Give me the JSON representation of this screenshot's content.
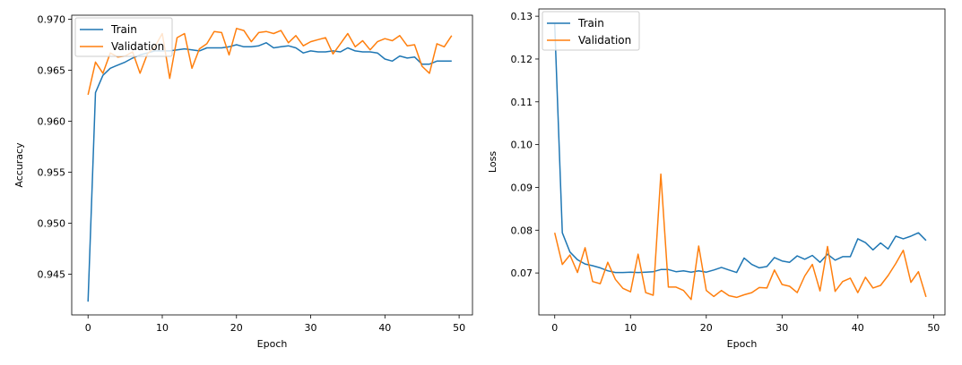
{
  "chart_data": [
    {
      "type": "line",
      "xlabel": "Epoch",
      "ylabel": "Accuracy",
      "xlim": [
        -2.2,
        51.8
      ],
      "ylim": [
        0.941,
        0.9704
      ],
      "xticks": [
        0,
        10,
        20,
        30,
        40,
        50
      ],
      "xtick_labels": [
        "0",
        "10",
        "20",
        "30",
        "40",
        "50"
      ],
      "yticks": [
        0.945,
        0.95,
        0.955,
        0.96,
        0.965,
        0.97
      ],
      "ytick_labels": [
        "0.945",
        "0.950",
        "0.955",
        "0.960",
        "0.965",
        "0.970"
      ],
      "grid": false,
      "legend": "top-left",
      "x": [
        0,
        1,
        2,
        3,
        4,
        5,
        6,
        7,
        8,
        9,
        10,
        11,
        12,
        13,
        14,
        15,
        16,
        17,
        18,
        19,
        20,
        21,
        22,
        23,
        24,
        25,
        26,
        27,
        28,
        29,
        30,
        31,
        32,
        33,
        34,
        35,
        36,
        37,
        38,
        39,
        40,
        41,
        42,
        43,
        44,
        45,
        46,
        47,
        48,
        49
      ],
      "series": [
        {
          "name": "Train",
          "color": "#1f77b4",
          "values": [
            0.9423,
            0.9628,
            0.9645,
            0.9652,
            0.9655,
            0.9658,
            0.9662,
            0.9665,
            0.9667,
            0.9669,
            0.9669,
            0.9669,
            0.967,
            0.9671,
            0.967,
            0.9669,
            0.9672,
            0.9672,
            0.9672,
            0.9673,
            0.9675,
            0.9673,
            0.9673,
            0.9674,
            0.9677,
            0.9672,
            0.9673,
            0.9674,
            0.9672,
            0.9667,
            0.9669,
            0.9668,
            0.9668,
            0.9669,
            0.9668,
            0.9672,
            0.9669,
            0.9668,
            0.9668,
            0.9667,
            0.9661,
            0.9659,
            0.9664,
            0.9662,
            0.9663,
            0.9656,
            0.9656,
            0.9659,
            0.9659,
            0.9659
          ]
        },
        {
          "name": "Validation",
          "color": "#ff7f0e",
          "values": [
            0.9626,
            0.9658,
            0.9647,
            0.9667,
            0.9663,
            0.9664,
            0.9668,
            0.9647,
            0.9666,
            0.9673,
            0.9686,
            0.9642,
            0.9682,
            0.9686,
            0.9652,
            0.9671,
            0.9676,
            0.9688,
            0.9687,
            0.9665,
            0.9691,
            0.9689,
            0.9678,
            0.9687,
            0.9688,
            0.9686,
            0.9689,
            0.9677,
            0.9684,
            0.9674,
            0.9678,
            0.968,
            0.9682,
            0.9666,
            0.9676,
            0.9686,
            0.9673,
            0.9679,
            0.967,
            0.9678,
            0.9681,
            0.9679,
            0.9684,
            0.9674,
            0.9675,
            0.9654,
            0.9647,
            0.9676,
            0.9673,
            0.9684
          ]
        }
      ]
    },
    {
      "type": "line",
      "xlabel": "Epoch",
      "ylabel": "Loss",
      "xlim": [
        -2.1,
        51.5
      ],
      "ylim": [
        0.0602,
        0.1317
      ],
      "xticks": [
        0,
        10,
        20,
        30,
        40,
        50
      ],
      "xtick_labels": [
        "0",
        "10",
        "20",
        "30",
        "40",
        "50"
      ],
      "yticks": [
        0.07,
        0.08,
        0.09,
        0.1,
        0.11,
        0.12,
        0.13
      ],
      "ytick_labels": [
        "0.07",
        "0.08",
        "0.09",
        "0.10",
        "0.11",
        "0.12",
        "0.13"
      ],
      "grid": false,
      "legend": "top-left",
      "x": [
        0,
        1,
        2,
        3,
        4,
        5,
        6,
        7,
        8,
        9,
        10,
        11,
        12,
        13,
        14,
        15,
        16,
        17,
        18,
        19,
        20,
        21,
        22,
        23,
        24,
        25,
        26,
        27,
        28,
        29,
        30,
        31,
        32,
        33,
        34,
        35,
        36,
        37,
        38,
        39,
        40,
        41,
        42,
        43,
        44,
        45,
        46,
        47,
        48,
        49
      ],
      "series": [
        {
          "name": "Train",
          "color": "#1f77b4",
          "values": [
            0.1282,
            0.0794,
            0.0749,
            0.0731,
            0.0721,
            0.0717,
            0.0712,
            0.0705,
            0.0701,
            0.0701,
            0.0702,
            0.0701,
            0.0702,
            0.0703,
            0.0708,
            0.0708,
            0.0703,
            0.0705,
            0.0702,
            0.0705,
            0.0702,
            0.0707,
            0.0713,
            0.0707,
            0.0701,
            0.0735,
            0.072,
            0.0712,
            0.0715,
            0.0736,
            0.0728,
            0.0725,
            0.074,
            0.0732,
            0.0741,
            0.0725,
            0.0744,
            0.073,
            0.0738,
            0.0738,
            0.078,
            0.0771,
            0.0754,
            0.077,
            0.0756,
            0.0786,
            0.078,
            0.0786,
            0.0794,
            0.0776
          ]
        },
        {
          "name": "Validation",
          "color": "#ff7f0e",
          "values": [
            0.0794,
            0.072,
            0.0742,
            0.0701,
            0.0759,
            0.068,
            0.0675,
            0.0725,
            0.0685,
            0.0664,
            0.0656,
            0.0744,
            0.0654,
            0.0648,
            0.0931,
            0.0667,
            0.0667,
            0.0659,
            0.0638,
            0.0763,
            0.0659,
            0.0645,
            0.0659,
            0.0647,
            0.0643,
            0.0649,
            0.0654,
            0.0666,
            0.0665,
            0.0707,
            0.0673,
            0.0669,
            0.0654,
            0.0693,
            0.072,
            0.0658,
            0.0762,
            0.0657,
            0.068,
            0.0688,
            0.0654,
            0.069,
            0.0665,
            0.0671,
            0.0694,
            0.0722,
            0.0753,
            0.0678,
            0.0703,
            0.0644
          ]
        }
      ]
    }
  ]
}
